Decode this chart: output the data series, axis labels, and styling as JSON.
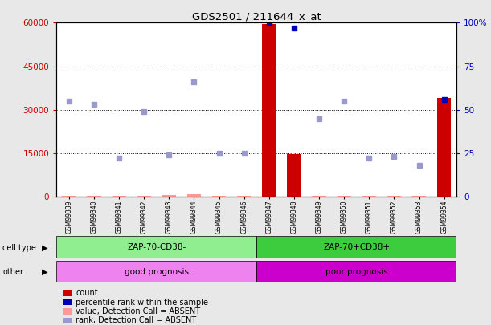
{
  "title": "GDS2501 / 211644_x_at",
  "samples": [
    "GSM99339",
    "GSM99340",
    "GSM99341",
    "GSM99342",
    "GSM99343",
    "GSM99344",
    "GSM99345",
    "GSM99346",
    "GSM99347",
    "GSM99348",
    "GSM99349",
    "GSM99350",
    "GSM99351",
    "GSM99352",
    "GSM99353",
    "GSM99354"
  ],
  "count_values": [
    300,
    300,
    200,
    150,
    500,
    800,
    150,
    200,
    59500,
    14800,
    200,
    400,
    200,
    200,
    150,
    34000
  ],
  "rank_values": [
    55,
    53,
    22,
    49,
    24,
    66,
    25,
    25,
    100,
    97,
    45,
    55,
    22,
    23,
    18,
    56
  ],
  "rank_absent": [
    true,
    true,
    true,
    true,
    true,
    true,
    true,
    true,
    false,
    false,
    true,
    true,
    true,
    true,
    true,
    false
  ],
  "count_absent": [
    true,
    true,
    true,
    true,
    true,
    true,
    true,
    true,
    false,
    false,
    true,
    true,
    true,
    true,
    true,
    false
  ],
  "cell_type_groups": [
    {
      "label": "ZAP-70-CD38-",
      "start": 0,
      "end": 7,
      "color": "#90EE90"
    },
    {
      "label": "ZAP-70+CD38+",
      "start": 8,
      "end": 15,
      "color": "#3DCC3D"
    }
  ],
  "other_groups": [
    {
      "label": "good prognosis",
      "start": 0,
      "end": 7,
      "color": "#EE82EE"
    },
    {
      "label": "poor prognosis",
      "start": 8,
      "end": 15,
      "color": "#CC00CC"
    }
  ],
  "ylim_left": [
    0,
    60000
  ],
  "ylim_right": [
    0,
    100
  ],
  "yticks_left": [
    0,
    15000,
    30000,
    45000,
    60000
  ],
  "yticks_right": [
    0,
    25,
    50,
    75,
    100
  ],
  "count_color_present": "#CC0000",
  "count_color_absent": "#FF9999",
  "rank_color_present": "#0000BB",
  "rank_color_absent": "#9999CC",
  "bg_color": "#E8E8E8",
  "plot_bg": "#FFFFFF",
  "xticklabel_bg": "#D0D0D0",
  "left_label_color": "#CC0000",
  "right_label_color": "#0000BB",
  "legend_items": [
    {
      "color": "#CC0000",
      "label": "count"
    },
    {
      "color": "#0000BB",
      "label": "percentile rank within the sample"
    },
    {
      "color": "#FF9999",
      "label": "value, Detection Call = ABSENT"
    },
    {
      "color": "#9999CC",
      "label": "rank, Detection Call = ABSENT"
    }
  ]
}
